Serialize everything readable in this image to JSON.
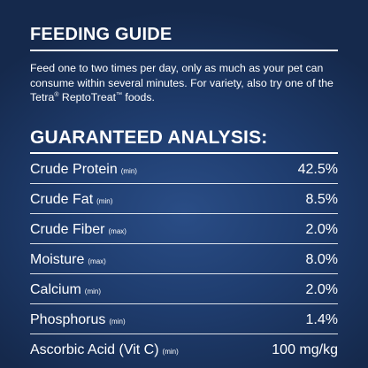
{
  "feeding_guide": {
    "title": "FEEDING GUIDE",
    "text_main": "Feed one to two times per day, only as much as your pet can consume within several minutes. For variety, also try one of the Tetra",
    "reg_mark": "®",
    "brand": " ReptoTreat",
    "tm_mark": "™",
    "text_end": " foods."
  },
  "analysis": {
    "title": "GUARANTEED ANALYSIS:",
    "rows": [
      {
        "name": "Crude Protein",
        "qualifier": "(min)",
        "value": "42.5%"
      },
      {
        "name": "Crude Fat",
        "qualifier": "(min)",
        "value": "8.5%"
      },
      {
        "name": "Crude Fiber",
        "qualifier": "(max)",
        "value": "2.0%"
      },
      {
        "name": "Moisture",
        "qualifier": "(max)",
        "value": "8.0%"
      },
      {
        "name": "Calcium",
        "qualifier": "(min)",
        "value": "2.0%"
      },
      {
        "name": "Phosphorus",
        "qualifier": "(min)",
        "value": "1.4%"
      },
      {
        "name": "Ascorbic Acid (Vit C)",
        "qualifier": "(min)",
        "value": "100 mg/kg"
      }
    ]
  },
  "colors": {
    "background": "#1f3d6f",
    "text": "#ffffff"
  }
}
